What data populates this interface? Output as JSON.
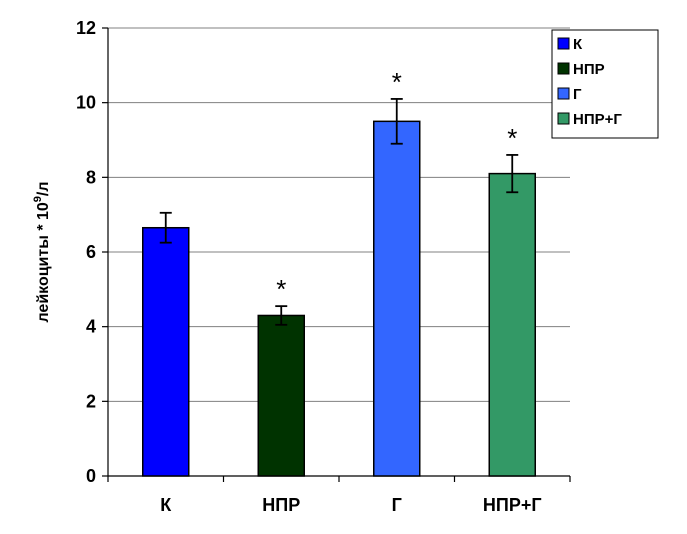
{
  "chart_data": {
    "type": "bar",
    "categories": [
      "К",
      "НПР",
      "Г",
      "НПР+Г"
    ],
    "values": [
      6.65,
      4.3,
      9.5,
      8.1
    ],
    "errors": [
      0.4,
      0.25,
      0.6,
      0.5
    ],
    "significance": [
      "",
      "*",
      "*",
      "*"
    ],
    "colors": [
      "#0000ff",
      "#003300",
      "#3366ff",
      "#339966"
    ],
    "ylabel_main": "лейкоциты * 10",
    "ylabel_sup": "9",
    "ylabel_tail": "/л",
    "ylim": [
      0,
      12
    ],
    "yticks": [
      0,
      2,
      4,
      6,
      8,
      10,
      12
    ],
    "grid": true,
    "legend_position": "top-right",
    "legend": [
      "К",
      "НПР",
      "Г",
      "НПР+Г"
    ]
  }
}
